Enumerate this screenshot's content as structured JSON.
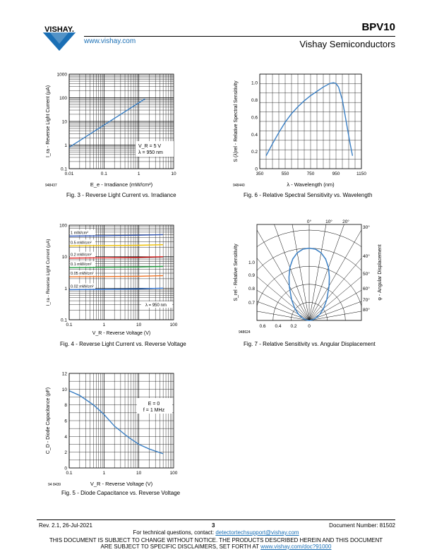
{
  "header": {
    "logo_text": "VISHAY.",
    "website": "www.vishay.com",
    "part_number": "BPV10",
    "company": "Vishay Semiconductors"
  },
  "figures": [
    {
      "id": "fig3",
      "caption": "Fig. 3 - Reverse Light Current vs. Irradiance",
      "code": "948437",
      "ylabel": "I_ra - Reverse Light Current (µA)",
      "xlabel": "E_e - Irradiance (mW/cm²)",
      "annotation": [
        "V_R = 5 V",
        "λ = 950 nm"
      ]
    },
    {
      "id": "fig6",
      "caption": "Fig. 6 - Relative Spectral Sensitivity vs. Wavelength",
      "code": "948440",
      "ylabel": "S (λ)rel - Relative Spectral Sensitivity",
      "xlabel": "λ - Wavelength (nm)"
    },
    {
      "id": "fig4",
      "caption": "Fig. 4 - Reverse Light Current vs. Reverse Voltage",
      "ylabel": "I_ra - Reverse Light Current (µA)",
      "xlabel": "V_R - Reverse Voltage (V)",
      "annotation": [
        "λ = 950 nm"
      ]
    },
    {
      "id": "fig7",
      "caption": "Fig. 7 - Relative Sensitivity vs. Angular Displacement",
      "code": "948624",
      "ylabel": "S_rel - Relative Sensitivity",
      "ylabel2": "φ - Angular Displacement"
    },
    {
      "id": "fig5",
      "caption": "Fig. 5 - Diode Capacitance vs. Reverse Voltage",
      "code": "94 8439",
      "ylabel": "C_D - Diode Capacitance (pF)",
      "xlabel": "V_R - Reverse Voltage (V)",
      "annotation": [
        "E = 0",
        "f = 1 MHz"
      ]
    }
  ],
  "chart_data": [
    {
      "type": "line",
      "figure": "fig3",
      "x_scale": "log",
      "y_scale": "log",
      "xlim": [
        0.01,
        10
      ],
      "ylim": [
        0.1,
        1000
      ],
      "x_ticks": [
        "0.01",
        "0.1",
        "1",
        "10"
      ],
      "y_ticks": [
        "0.1",
        "1",
        "10",
        "100",
        "1000"
      ],
      "series": [
        {
          "x": [
            0.01,
            0.1,
            1.5
          ],
          "y": [
            0.8,
            7,
            90
          ],
          "color": "#3a7fc4"
        }
      ]
    },
    {
      "type": "line",
      "figure": "fig6",
      "xlim": [
        350,
        1150
      ],
      "ylim": [
        0,
        1.1
      ],
      "x_ticks": [
        "350",
        "550",
        "750",
        "950",
        "1150"
      ],
      "y_ticks": [
        "0",
        "0.2",
        "0.4",
        "0.6",
        "0.8",
        "1.0"
      ],
      "series": [
        {
          "x": [
            400,
            450,
            500,
            550,
            600,
            650,
            700,
            750,
            800,
            850,
            900,
            930,
            950,
            970,
            1000,
            1030,
            1060,
            1080
          ],
          "y": [
            0.15,
            0.29,
            0.42,
            0.54,
            0.64,
            0.72,
            0.79,
            0.85,
            0.9,
            0.95,
            0.99,
            1.0,
            0.99,
            0.95,
            0.8,
            0.55,
            0.3,
            0.15
          ],
          "color": "#3a7fc4"
        }
      ]
    },
    {
      "type": "line",
      "figure": "fig4",
      "x_scale": "log",
      "y_scale": "log",
      "xlim": [
        0.1,
        100
      ],
      "ylim": [
        0.1,
        100
      ],
      "x_ticks": [
        "0.1",
        "1",
        "10",
        "100"
      ],
      "y_ticks": [
        "0.1",
        "1",
        "10",
        "100"
      ],
      "series": [
        {
          "name": "1 mW/cm²",
          "x": [
            0.1,
            1,
            10,
            50
          ],
          "y": [
            45,
            46,
            48,
            50
          ],
          "color": "#2a4fb0"
        },
        {
          "name": "0.5 mW/cm²",
          "x": [
            0.1,
            1,
            10,
            50
          ],
          "y": [
            22,
            22.5,
            23,
            24
          ],
          "color": "#f0c000"
        },
        {
          "name": "0.2 mW/cm²",
          "x": [
            0.1,
            1,
            10,
            50
          ],
          "y": [
            9,
            9.2,
            9.5,
            10
          ],
          "color": "#e02020"
        },
        {
          "name": "0.1 mW/cm²",
          "x": [
            0.1,
            1,
            10,
            50
          ],
          "y": [
            4.5,
            4.6,
            4.7,
            4.9
          ],
          "color": "#20a040"
        },
        {
          "name": "0.05 mW/cm²",
          "x": [
            0.1,
            1,
            10,
            50
          ],
          "y": [
            2.3,
            2.35,
            2.4,
            2.5
          ],
          "color": "#f07020"
        },
        {
          "name": "0.02 mW/cm²",
          "x": [
            0.1,
            1,
            10,
            50
          ],
          "y": [
            0.9,
            0.92,
            0.95,
            1.0
          ],
          "color": "#2a6fd0"
        }
      ]
    },
    {
      "type": "polar",
      "figure": "fig7",
      "radial_ticks": [
        "1.0",
        "0.9",
        "0.8",
        "0.7"
      ],
      "axis_ticks": [
        "0.6",
        "0.4",
        "0.2",
        "0"
      ],
      "angle_ticks_top": [
        "0°",
        "10°",
        "20°"
      ],
      "angle_ticks_right": [
        "30°",
        "40°",
        "50°",
        "60°",
        "70°",
        "80°"
      ],
      "series": [
        {
          "angle_deg": [
            0,
            5,
            10,
            15,
            20,
            25,
            30,
            40,
            50,
            60,
            70,
            80,
            90
          ],
          "value": [
            1.0,
            0.99,
            0.95,
            0.88,
            0.78,
            0.66,
            0.55,
            0.38,
            0.26,
            0.17,
            0.1,
            0.05,
            0.0
          ],
          "color": "#3a7fc4"
        }
      ]
    },
    {
      "type": "line",
      "figure": "fig5",
      "x_scale": "log",
      "xlim": [
        0.1,
        100
      ],
      "ylim": [
        0,
        12
      ],
      "x_ticks": [
        "0.1",
        "1",
        "10",
        "100"
      ],
      "y_ticks": [
        "0",
        "2",
        "4",
        "6",
        "8",
        "10",
        "12"
      ],
      "series": [
        {
          "x": [
            0.1,
            0.2,
            0.5,
            1,
            2,
            5,
            10,
            20,
            50
          ],
          "y": [
            9.8,
            9.2,
            8.0,
            6.8,
            5.3,
            3.9,
            3.0,
            2.4,
            1.8
          ],
          "color": "#3a7fc4"
        }
      ]
    }
  ],
  "footer": {
    "revision": "Rev. 2.1, 26-Jul-2021",
    "page": "3",
    "doc_number": "Document Number: 81502",
    "contact_prefix": "For technical questions, contact: ",
    "contact_email": "detectortechsupport@vishay.com",
    "disclaimer_line1": "THIS DOCUMENT IS SUBJECT TO CHANGE WITHOUT NOTICE. THE PRODUCTS DESCRIBED HEREIN AND THIS DOCUMENT",
    "disclaimer_line2_prefix": "ARE SUBJECT TO SPECIFIC DISCLAIMERS, SET FORTH AT ",
    "disclaimer_link": "www.vishay.com/doc?91000"
  }
}
